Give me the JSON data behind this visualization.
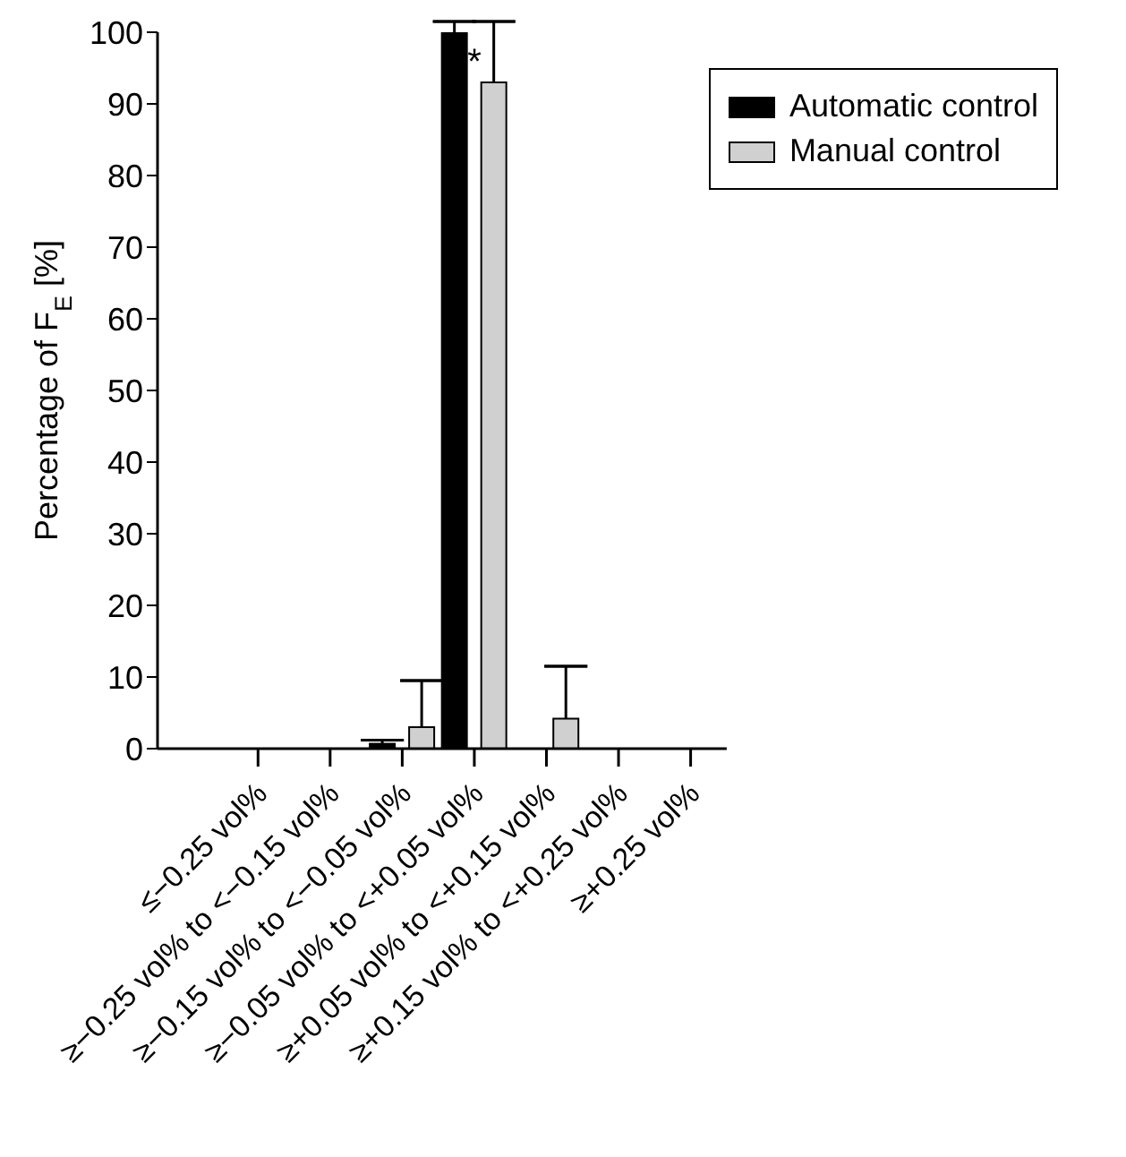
{
  "chart_data": {
    "type": "bar",
    "ylabel": "Percentage of F$_{E}$ [%]",
    "categories": [
      "≤−0.25 vol%",
      "≥−0.25 vol% to <−0.15 vol%",
      "≥−0.15 vol% to <−0.05 vol%",
      "≥−0.05 vol% to <+0.05 vol%",
      "≥+0.05 vol% to <+0.15 vol%",
      "≥+0.15 vol% to <+0.25 vol%",
      "≥+0.25 vol%"
    ],
    "series": [
      {
        "name": "Automatic control",
        "color": "#000000",
        "values": [
          0,
          0,
          0.7,
          100,
          0,
          0,
          0
        ],
        "errors": [
          null,
          null,
          [
            0.7,
            1.2
          ],
          [
            100,
            101.5
          ],
          null,
          null,
          null
        ]
      },
      {
        "name": "Manual control",
        "color": "#d0d0d0",
        "values": [
          0,
          0,
          3,
          93,
          4.2,
          0,
          0
        ],
        "errors": [
          null,
          null,
          [
            3,
            9.5
          ],
          [
            93,
            101.5
          ],
          [
            4.2,
            11.5
          ],
          null,
          null
        ]
      }
    ],
    "ylim": [
      0,
      100
    ],
    "yticks": [
      0,
      10,
      20,
      30,
      40,
      50,
      60,
      70,
      80,
      90,
      100
    ],
    "grid": false,
    "legend": "top right",
    "annotations": [
      {
        "text": "*",
        "x": "≥−0.05 vol% to <+0.05 vol%",
        "y": 96
      }
    ]
  }
}
